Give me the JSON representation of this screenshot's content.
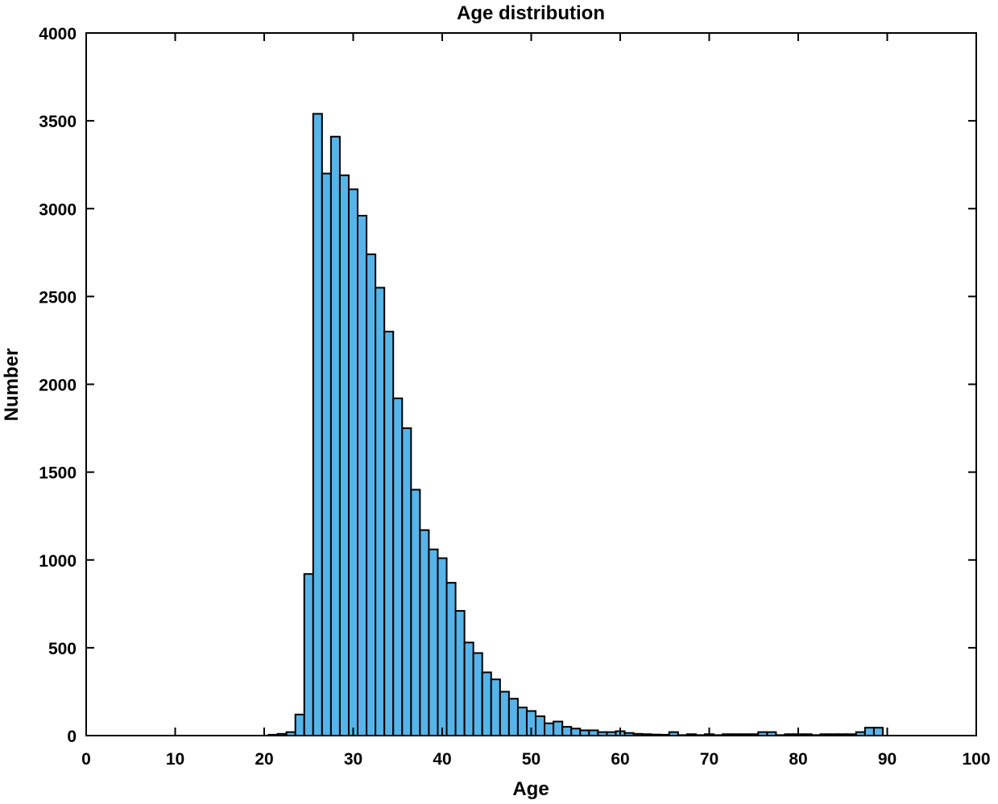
{
  "chart_data": {
    "type": "bar",
    "title": "Age distribution",
    "xlabel": "Age",
    "ylabel": "Number",
    "xlim": [
      0,
      100
    ],
    "ylim": [
      0,
      4000
    ],
    "xticks": [
      0,
      10,
      20,
      30,
      40,
      50,
      60,
      70,
      80,
      90,
      100
    ],
    "yticks": [
      0,
      500,
      1000,
      1500,
      2000,
      2500,
      3000,
      3500,
      4000
    ],
    "grid": false,
    "bar_color": "#56b4e9",
    "edge_color": "#000000",
    "bins": [
      {
        "x": 21,
        "value": 5
      },
      {
        "x": 22,
        "value": 10
      },
      {
        "x": 23,
        "value": 20
      },
      {
        "x": 24,
        "value": 120
      },
      {
        "x": 25,
        "value": 920
      },
      {
        "x": 26,
        "value": 3540
      },
      {
        "x": 27,
        "value": 3200
      },
      {
        "x": 28,
        "value": 3410
      },
      {
        "x": 29,
        "value": 3190
      },
      {
        "x": 30,
        "value": 3110
      },
      {
        "x": 31,
        "value": 2960
      },
      {
        "x": 32,
        "value": 2740
      },
      {
        "x": 33,
        "value": 2550
      },
      {
        "x": 34,
        "value": 2300
      },
      {
        "x": 35,
        "value": 1920
      },
      {
        "x": 36,
        "value": 1750
      },
      {
        "x": 37,
        "value": 1400
      },
      {
        "x": 38,
        "value": 1170
      },
      {
        "x": 39,
        "value": 1060
      },
      {
        "x": 40,
        "value": 1010
      },
      {
        "x": 41,
        "value": 870
      },
      {
        "x": 42,
        "value": 710
      },
      {
        "x": 43,
        "value": 530
      },
      {
        "x": 44,
        "value": 470
      },
      {
        "x": 45,
        "value": 360
      },
      {
        "x": 46,
        "value": 320
      },
      {
        "x": 47,
        "value": 250
      },
      {
        "x": 48,
        "value": 210
      },
      {
        "x": 49,
        "value": 160
      },
      {
        "x": 50,
        "value": 140
      },
      {
        "x": 51,
        "value": 110
      },
      {
        "x": 52,
        "value": 70
      },
      {
        "x": 53,
        "value": 80
      },
      {
        "x": 54,
        "value": 50
      },
      {
        "x": 55,
        "value": 40
      },
      {
        "x": 56,
        "value": 30
      },
      {
        "x": 57,
        "value": 30
      },
      {
        "x": 58,
        "value": 20
      },
      {
        "x": 59,
        "value": 20
      },
      {
        "x": 60,
        "value": 25
      },
      {
        "x": 61,
        "value": 15
      },
      {
        "x": 62,
        "value": 10
      },
      {
        "x": 63,
        "value": 8
      },
      {
        "x": 64,
        "value": 6
      },
      {
        "x": 65,
        "value": 5
      },
      {
        "x": 66,
        "value": 20
      },
      {
        "x": 67,
        "value": 3
      },
      {
        "x": 68,
        "value": 8
      },
      {
        "x": 69,
        "value": 3
      },
      {
        "x": 70,
        "value": 8
      },
      {
        "x": 71,
        "value": 3
      },
      {
        "x": 72,
        "value": 8
      },
      {
        "x": 73,
        "value": 8
      },
      {
        "x": 74,
        "value": 8
      },
      {
        "x": 75,
        "value": 8
      },
      {
        "x": 76,
        "value": 20
      },
      {
        "x": 77,
        "value": 20
      },
      {
        "x": 78,
        "value": 3
      },
      {
        "x": 79,
        "value": 8
      },
      {
        "x": 80,
        "value": 8
      },
      {
        "x": 81,
        "value": 8
      },
      {
        "x": 82,
        "value": 3
      },
      {
        "x": 83,
        "value": 8
      },
      {
        "x": 84,
        "value": 8
      },
      {
        "x": 85,
        "value": 8
      },
      {
        "x": 86,
        "value": 8
      },
      {
        "x": 87,
        "value": 20
      },
      {
        "x": 88,
        "value": 45
      },
      {
        "x": 89,
        "value": 45
      }
    ]
  }
}
